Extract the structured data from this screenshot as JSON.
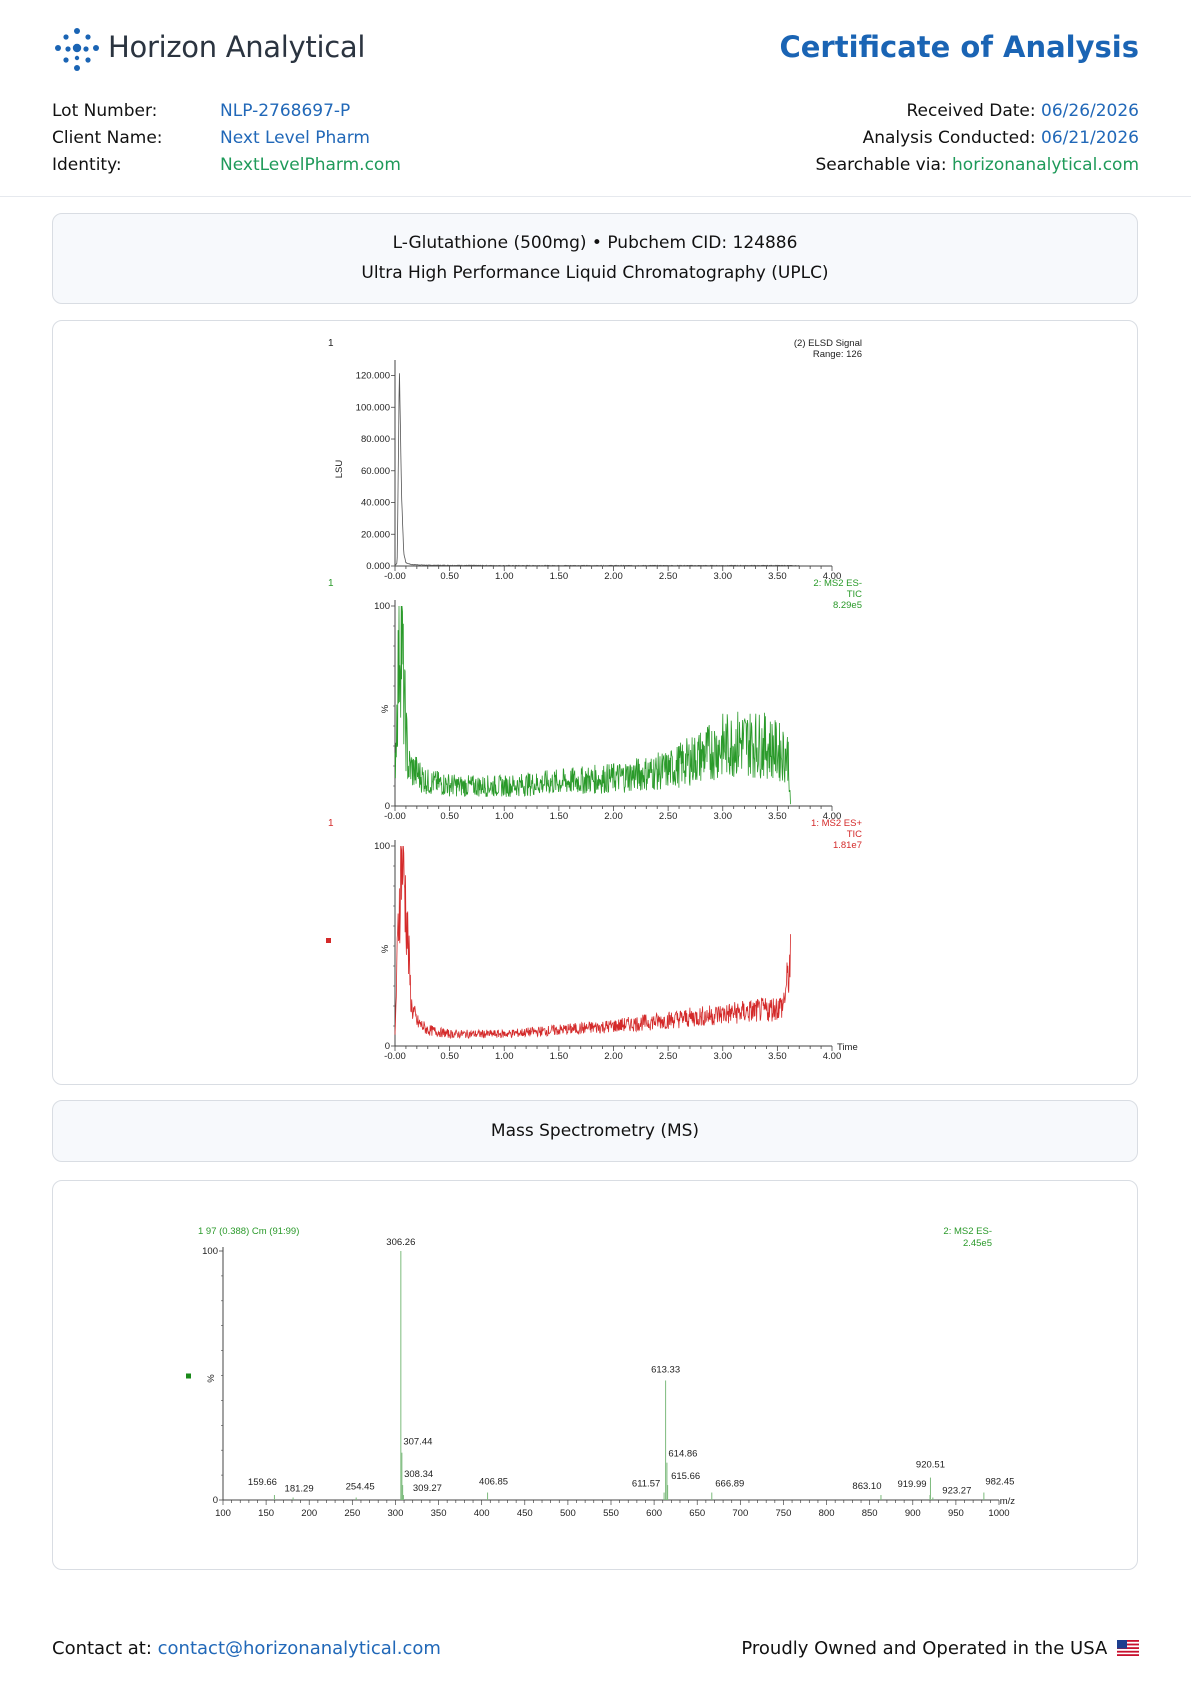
{
  "header": {
    "brand": "Horizon Analytical",
    "doc_title": "Certificate of Analysis",
    "logo_icon": "dots-cluster-logo-icon"
  },
  "meta_left": [
    {
      "label": "Lot Number:",
      "value": "NLP-2768697-P",
      "color": "#2168b8"
    },
    {
      "label": "Client Name:",
      "value": "Next Level Pharm",
      "color": "#2168b8"
    },
    {
      "label": "Identity:",
      "value": "NextLevelPharm.com",
      "color": "#1f9a5a"
    }
  ],
  "meta_right": [
    {
      "label": "Received Date:",
      "value": "06/26/2026",
      "color": "#2168b8"
    },
    {
      "label": "Analysis Conducted:",
      "value": "06/21/2026",
      "color": "#2168b8"
    },
    {
      "label": "Searchable via:",
      "value": "horizonanalytical.com",
      "color": "#1f9a5a"
    }
  ],
  "sample": {
    "line1": "L-Glutathione (500mg) • Pubchem CID: 124886",
    "line2": "Ultra High Performance Liquid Chromatography (UPLC)"
  },
  "ms_section_title": "Mass Spectrometry (MS)",
  "footer": {
    "contact_label": "Contact at:",
    "contact_email": "contact@horizonanalytical.com",
    "tagline": "Proudly Owned and Operated in the USA",
    "flag_icon": "us-flag-icon"
  },
  "chart_data": [
    {
      "type": "line",
      "panel_label": "1",
      "title": "(2) ELSD Signal",
      "subtitle": "Range: 126",
      "ylabel": "LSU",
      "xlim": [
        0,
        4
      ],
      "ylim": [
        0,
        126000
      ],
      "x_ticks": [
        "-0.00",
        "0.50",
        "1.00",
        "1.50",
        "2.00",
        "2.50",
        "3.00",
        "3.50",
        "4.00"
      ],
      "y_ticks": [
        "0.000",
        "20.000",
        "40.000",
        "60.000",
        "80.000",
        "100.000",
        "120.000"
      ],
      "color": "#555555",
      "series": [
        {
          "x": [
            0,
            0.02,
            0.03,
            0.04,
            0.06,
            0.08,
            0.1,
            0.15,
            0.3,
            0.6,
            1.0,
            2.0,
            3.0,
            3.6,
            3.7
          ],
          "values": [
            300,
            2000,
            60000,
            126000,
            45000,
            8000,
            2000,
            900,
            500,
            400,
            300,
            300,
            300,
            300,
            200
          ]
        }
      ]
    },
    {
      "type": "line",
      "panel_label": "1",
      "title": "2: MS2 ES-",
      "subtitle": "TIC",
      "extra": "8.29e5",
      "ylabel": "%",
      "xlim": [
        0,
        4
      ],
      "ylim": [
        0,
        100
      ],
      "x_ticks": [
        "-0.00",
        "0.50",
        "1.00",
        "1.50",
        "2.00",
        "2.50",
        "3.00",
        "3.50",
        "4.00"
      ],
      "y_ticks": [
        "0",
        "100"
      ],
      "color": "#2a9a2a",
      "series": [
        {
          "x": [
            0.0,
            0.05,
            0.08,
            0.12,
            0.3,
            0.6,
            1.0,
            1.5,
            2.0,
            2.5,
            2.8,
            3.0,
            3.2,
            3.4,
            3.6,
            3.62
          ],
          "values": [
            20,
            100,
            55,
            20,
            12,
            10,
            10,
            12,
            14,
            18,
            25,
            30,
            32,
            30,
            25,
            0
          ]
        }
      ]
    },
    {
      "type": "line",
      "panel_label": "1",
      "title": "1: MS2 ES+",
      "subtitle": "TIC",
      "extra": "1.81e7",
      "ylabel": "%",
      "xlabel": "Time",
      "xlim": [
        0,
        4
      ],
      "ylim": [
        0,
        100
      ],
      "x_ticks": [
        "-0.00",
        "0.50",
        "1.00",
        "1.50",
        "2.00",
        "2.50",
        "3.00",
        "3.50",
        "4.00"
      ],
      "y_ticks": [
        "0",
        "100"
      ],
      "color": "#d42a2a",
      "series": [
        {
          "x": [
            0.0,
            0.03,
            0.06,
            0.1,
            0.15,
            0.2,
            0.3,
            0.5,
            1.0,
            1.5,
            2.0,
            2.5,
            3.0,
            3.4,
            3.55,
            3.6,
            3.62
          ],
          "values": [
            5,
            60,
            100,
            70,
            20,
            12,
            8,
            6,
            6,
            8,
            10,
            13,
            16,
            18,
            20,
            35,
            42
          ]
        }
      ]
    },
    {
      "type": "bar",
      "title": "1 97 (0.388) Cm (91:99)",
      "series_label": "2: MS2 ES-",
      "extra": "2.45e5",
      "ylabel": "%",
      "xlabel": "m/z",
      "xlim": [
        100,
        1000
      ],
      "ylim": [
        0,
        100
      ],
      "x_ticks": [
        "100",
        "150",
        "200",
        "250",
        "300",
        "350",
        "400",
        "450",
        "500",
        "550",
        "600",
        "650",
        "700",
        "750",
        "800",
        "850",
        "900",
        "950",
        "1000"
      ],
      "y_ticks": [
        "0",
        "100"
      ],
      "color": "#2a9a2a",
      "peaks": [
        {
          "mz": 159.66,
          "label": "159.66",
          "intensity": 2
        },
        {
          "mz": 181.29,
          "label": "181.29",
          "intensity": 1
        },
        {
          "mz": 254.45,
          "label": "254.45",
          "intensity": 1
        },
        {
          "mz": 306.26,
          "label": "306.26",
          "intensity": 100
        },
        {
          "mz": 307.44,
          "label": "307.44",
          "intensity": 19
        },
        {
          "mz": 308.34,
          "label": "308.34",
          "intensity": 6
        },
        {
          "mz": 309.27,
          "label": "309.27",
          "intensity": 2
        },
        {
          "mz": 406.85,
          "label": "406.85",
          "intensity": 3
        },
        {
          "mz": 611.57,
          "label": "611.57",
          "intensity": 3
        },
        {
          "mz": 613.33,
          "label": "613.33",
          "intensity": 48
        },
        {
          "mz": 614.86,
          "label": "614.86",
          "intensity": 15
        },
        {
          "mz": 615.66,
          "label": "615.66",
          "intensity": 6
        },
        {
          "mz": 666.89,
          "label": "666.89",
          "intensity": 3
        },
        {
          "mz": 863.1,
          "label": "863.10",
          "intensity": 2
        },
        {
          "mz": 919.99,
          "label": "919.99",
          "intensity": 2
        },
        {
          "mz": 920.51,
          "label": "920.51",
          "intensity": 9
        },
        {
          "mz": 923.27,
          "label": "923.27",
          "intensity": 1
        },
        {
          "mz": 982.45,
          "label": "982.45",
          "intensity": 3
        }
      ]
    }
  ]
}
